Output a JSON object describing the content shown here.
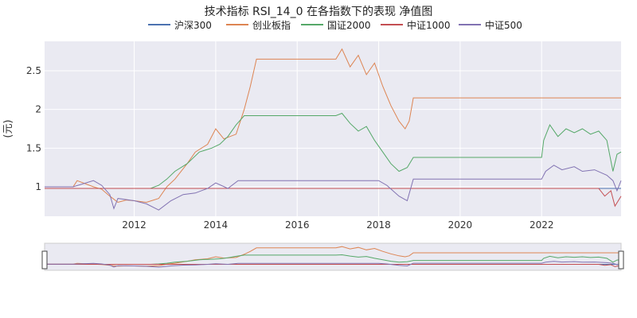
{
  "chart_data": {
    "type": "line",
    "title": "技术指标 RSI_14_0 在各指数下的表现 净值图",
    "xlabel": "",
    "ylabel": "(元)",
    "x_ticks": [
      "2012",
      "2014",
      "2016",
      "2018",
      "2020",
      "2022"
    ],
    "y_ticks": [
      "1",
      "1.5",
      "2",
      "2.5"
    ],
    "xlim": [
      2009.8,
      2023.95
    ],
    "ylim": [
      0.62,
      2.88
    ],
    "grid": true,
    "legend_position": "top-center",
    "range_slider": true,
    "series": [
      {
        "name": "沪深300",
        "color": "#4c72b0",
        "x": [
          2009.8,
          2010.5,
          2011.0,
          2012.0,
          2013.0,
          2014.0,
          2015.0,
          2016.0,
          2017.0,
          2018.0,
          2019.0,
          2020.0,
          2021.0,
          2022.0,
          2023.0,
          2023.95
        ],
        "y": [
          0.98,
          0.98,
          0.98,
          0.98,
          0.98,
          0.98,
          0.98,
          0.98,
          0.98,
          0.98,
          0.98,
          0.98,
          0.98,
          0.98,
          0.98,
          0.98
        ]
      },
      {
        "name": "创业板指",
        "color": "#dd8452",
        "x": [
          2009.8,
          2010.3,
          2010.5,
          2010.6,
          2011.0,
          2011.2,
          2011.4,
          2011.6,
          2011.8,
          2012.0,
          2012.3,
          2012.6,
          2012.8,
          2013.0,
          2013.3,
          2013.5,
          2013.8,
          2014.0,
          2014.2,
          2014.5,
          2014.7,
          2014.85,
          2015.0,
          2016.0,
          2016.95,
          2017.1,
          2017.3,
          2017.5,
          2017.7,
          2017.9,
          2018.1,
          2018.3,
          2018.5,
          2018.65,
          2018.75,
          2018.85,
          2019.0,
          2020.0,
          2021.0,
          2022.0,
          2023.0,
          2023.95
        ],
        "y": [
          1.0,
          1.0,
          1.0,
          1.08,
          1.0,
          0.97,
          0.88,
          0.8,
          0.83,
          0.82,
          0.8,
          0.85,
          1.0,
          1.1,
          1.3,
          1.45,
          1.55,
          1.75,
          1.62,
          1.68,
          2.0,
          2.3,
          2.65,
          2.65,
          2.65,
          2.78,
          2.55,
          2.7,
          2.45,
          2.6,
          2.3,
          2.05,
          1.85,
          1.75,
          1.85,
          2.15,
          2.15,
          2.15,
          2.15,
          2.15,
          2.15,
          2.15
        ]
      },
      {
        "name": "国证2000",
        "color": "#55a868",
        "x": [
          2009.8,
          2011.0,
          2011.5,
          2012.0,
          2012.4,
          2012.6,
          2012.8,
          2013.0,
          2013.3,
          2013.6,
          2013.9,
          2014.1,
          2014.3,
          2014.5,
          2014.7,
          2015.0,
          2016.0,
          2016.95,
          2017.1,
          2017.3,
          2017.5,
          2017.7,
          2017.9,
          2018.1,
          2018.3,
          2018.5,
          2018.7,
          2018.85,
          2019.0,
          2020.0,
          2021.0,
          2022.0,
          2022.05,
          2022.2,
          2022.4,
          2022.6,
          2022.8,
          2023.0,
          2023.2,
          2023.4,
          2023.6,
          2023.75,
          2023.85,
          2023.95
        ],
        "y": [
          0.98,
          0.98,
          0.98,
          0.98,
          0.98,
          1.02,
          1.1,
          1.2,
          1.3,
          1.45,
          1.5,
          1.55,
          1.65,
          1.8,
          1.92,
          1.92,
          1.92,
          1.92,
          1.95,
          1.82,
          1.72,
          1.78,
          1.6,
          1.45,
          1.3,
          1.2,
          1.25,
          1.38,
          1.38,
          1.38,
          1.38,
          1.38,
          1.6,
          1.8,
          1.65,
          1.75,
          1.7,
          1.75,
          1.68,
          1.72,
          1.6,
          1.2,
          1.42,
          1.45
        ]
      },
      {
        "name": "中证1000",
        "color": "#c44e52",
        "x": [
          2009.8,
          2011.0,
          2012.0,
          2013.0,
          2014.0,
          2015.0,
          2016.0,
          2017.0,
          2018.0,
          2019.0,
          2020.0,
          2021.0,
          2022.0,
          2023.0,
          2023.4,
          2023.55,
          2023.7,
          2023.8,
          2023.95
        ],
        "y": [
          0.98,
          0.98,
          0.98,
          0.98,
          0.98,
          0.98,
          0.98,
          0.98,
          0.98,
          0.98,
          0.98,
          0.98,
          0.98,
          0.98,
          0.98,
          0.88,
          0.95,
          0.75,
          0.88
        ]
      },
      {
        "name": "中证500",
        "color": "#8172b2",
        "x": [
          2009.8,
          2010.5,
          2011.0,
          2011.2,
          2011.4,
          2011.5,
          2011.6,
          2012.0,
          2012.3,
          2012.6,
          2012.9,
          2013.2,
          2013.5,
          2013.8,
          2014.0,
          2014.3,
          2014.55,
          2015.0,
          2016.0,
          2017.0,
          2018.0,
          2018.2,
          2018.5,
          2018.7,
          2018.85,
          2019.0,
          2020.0,
          2021.0,
          2022.0,
          2022.1,
          2022.3,
          2022.5,
          2022.8,
          2023.0,
          2023.3,
          2023.6,
          2023.75,
          2023.85,
          2023.95
        ],
        "y": [
          1.0,
          1.0,
          1.08,
          1.02,
          0.9,
          0.72,
          0.85,
          0.82,
          0.78,
          0.7,
          0.82,
          0.9,
          0.92,
          0.98,
          1.05,
          0.98,
          1.08,
          1.08,
          1.08,
          1.08,
          1.08,
          1.02,
          0.88,
          0.82,
          1.1,
          1.1,
          1.1,
          1.1,
          1.1,
          1.2,
          1.28,
          1.22,
          1.26,
          1.2,
          1.22,
          1.15,
          1.08,
          0.95,
          1.08
        ]
      }
    ]
  }
}
